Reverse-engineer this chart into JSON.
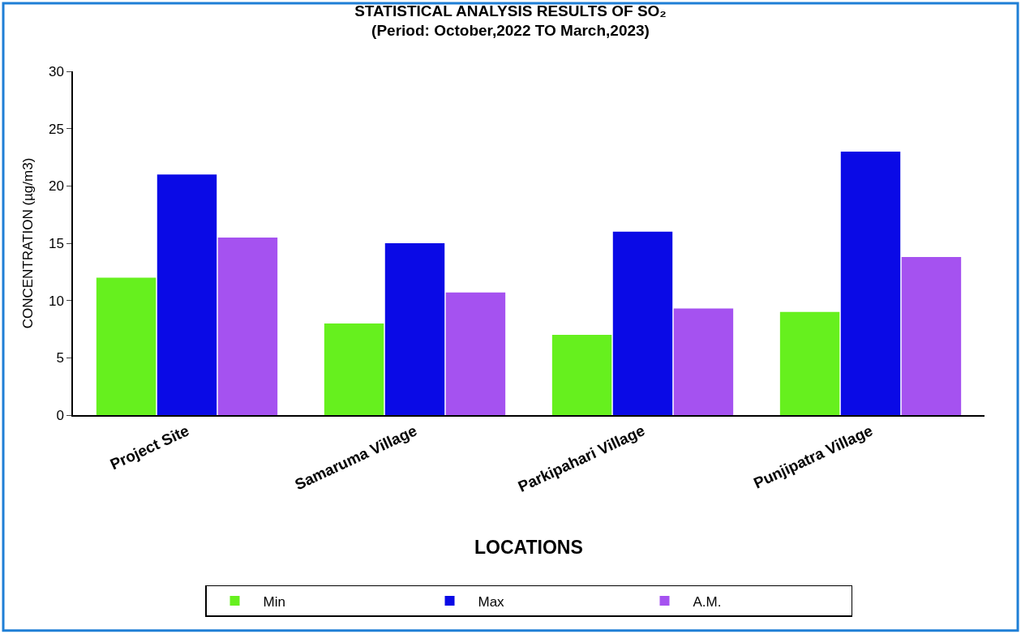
{
  "chart_data": {
    "type": "bar",
    "title": "STATISTICAL ANALYSIS RESULTS OF SO₂",
    "subtitle": "(Period: October,2022 TO March,2023)",
    "xlabel": "LOCATIONS",
    "ylabel": "CONCENTRATION (µg/m3)",
    "categories": [
      "Project Site",
      "Samaruma Village",
      "Parkipahari Village",
      "Punjipatra Village"
    ],
    "series": [
      {
        "name": "Min",
        "color": "#66f01e",
        "values": [
          12,
          8,
          7,
          9
        ]
      },
      {
        "name": "Max",
        "color": "#0a0ae6",
        "values": [
          21,
          15,
          16,
          23
        ]
      },
      {
        "name": "A.M.",
        "color": "#a552f0",
        "values": [
          15.5,
          10.7,
          9.3,
          13.8
        ]
      }
    ],
    "ylim": [
      0,
      30
    ],
    "yticks": [
      0,
      5,
      10,
      15,
      20,
      25,
      30
    ],
    "legend": "bottom"
  }
}
